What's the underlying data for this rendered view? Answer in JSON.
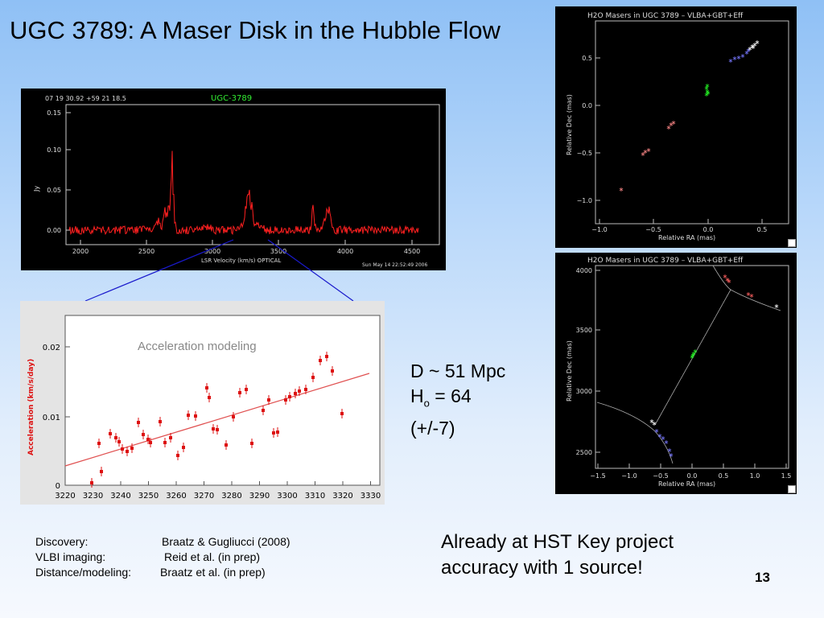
{
  "slide": {
    "title": "UGC 3789: A Maser Disk in the Hubble Flow",
    "page_number": "13",
    "distance": "D ~ 51 Mpc",
    "h0_symbol": "H",
    "h0_sub": "o",
    "h0_value": " = 64",
    "h0_error": "(+/-7)",
    "claim_line1": "Already at HST Key project",
    "claim_line2": "accuracy with 1 source!",
    "refs": [
      {
        "label": "Discovery:",
        "value": "Braatz & Gugliucci (2008)"
      },
      {
        "label": "VLBI imaging:",
        "value": "Reid et al. (in prep)"
      },
      {
        "label": "Distance/modeling:",
        "value": "Braatz et al. (in prep)"
      }
    ]
  },
  "spectrum": {
    "coords": "07 19 30.92   +59 21 18.5",
    "name": "UGC-3789",
    "ylabel": "Jy",
    "xlabel": "LSR Velocity (km/s) OPTICAL",
    "timestamp": "Sun May 14 22:52:49 2006",
    "yticks": [
      "0.15",
      "0.10",
      "0.05",
      "0.00"
    ],
    "xticks": [
      "2000",
      "2500",
      "3000",
      "3500",
      "4000",
      "4500"
    ]
  },
  "accel": {
    "label": "Acceleration modeling",
    "ylabel": "Acceleration  (km/s/day)",
    "yticks": [
      "0.02",
      "0.01",
      "0"
    ],
    "xticks": [
      "3220",
      "3230",
      "3240",
      "3250",
      "3260",
      "3270",
      "3280",
      "3290",
      "3300",
      "3310",
      "3320",
      "3330"
    ]
  },
  "map1": {
    "title": "H2O Masers in UGC 3789 – VLBA+GBT+Eff",
    "ylabel": "Relative Dec (mas)",
    "xlabel": "Relative RA (mas)",
    "yticks": [
      "0.5",
      "0.0",
      "−0.5",
      "−1.0"
    ],
    "xticks": [
      "−1.0",
      "−0.5",
      "0.0",
      "0.5"
    ]
  },
  "map2": {
    "title": "H2O Masers in UGC 3789 – VLBA+GBT+Eff",
    "ylabel": "Relative Dec (mas)",
    "xlabel": "Relative RA (mas)",
    "yticks": [
      "4000",
      "3500",
      "3000",
      "2500"
    ],
    "xticks": [
      "−1.5",
      "−1.0",
      "−0.5",
      "0.0",
      "0.5",
      "1.0",
      "1.5"
    ]
  },
  "colors": {
    "spectrum_line": "#ff2020",
    "accel_points": "#dd1111",
    "accel_fit": "#e05050",
    "accel_label": "#888888",
    "map_red": "#ff5050",
    "map_green": "#22ee22",
    "map_blue": "#7777ff",
    "name_green": "#33ee33",
    "connector": "#1a1acc"
  }
}
